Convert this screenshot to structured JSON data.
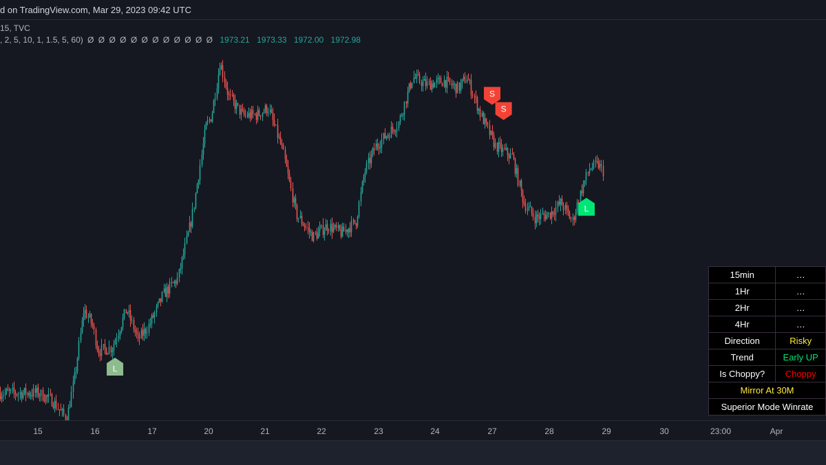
{
  "header": {
    "published_text": "d on TradingView.com, Mar 29, 2023 09:42 UTC"
  },
  "legend": {
    "symbol_line": "15, TVC",
    "params": ", 2, 5, 10, 1, 1.5, 5, 60)",
    "placeholders": [
      "Ø",
      "Ø",
      "Ø",
      "Ø",
      "Ø",
      "Ø",
      "Ø",
      "Ø",
      "Ø",
      "Ø",
      "Ø",
      "Ø"
    ],
    "values": [
      "1973.21",
      "1973.33",
      "1972.00",
      "1972.98"
    ]
  },
  "colors": {
    "background": "#151821",
    "up_candle": "#26a69a",
    "down_candle": "#ef5350",
    "long_signal": "#8fbc8f",
    "long_signal_bright": "#00e676",
    "short_signal": "#f44336",
    "table_text_yellow": "#ffeb3b",
    "table_text_green": "#00e676",
    "table_text_red": "#ff0000"
  },
  "chart_data": {
    "type": "candlestick",
    "x_ticks": [
      "15",
      "16",
      "17",
      "20",
      "21",
      "22",
      "23",
      "24",
      "27",
      "28",
      "29",
      "30",
      "23:00",
      "Apr"
    ],
    "last_close": 1972.98,
    "waypoints": [
      {
        "day": 15.0,
        "price": 1920
      },
      {
        "day": 15.25,
        "price": 1918
      },
      {
        "day": 15.5,
        "price": 1913
      },
      {
        "day": 15.65,
        "price": 1925
      },
      {
        "day": 15.8,
        "price": 1942
      },
      {
        "day": 15.95,
        "price": 1938
      },
      {
        "day": 16.05,
        "price": 1931
      },
      {
        "day": 16.3,
        "price": 1932
      },
      {
        "day": 16.55,
        "price": 1942
      },
      {
        "day": 16.75,
        "price": 1934
      },
      {
        "day": 16.95,
        "price": 1938
      },
      {
        "day": 17.2,
        "price": 1946
      },
      {
        "day": 17.45,
        "price": 1950
      },
      {
        "day": 17.7,
        "price": 1966
      },
      {
        "day": 17.95,
        "price": 1990
      },
      {
        "day": 20.05,
        "price": 1993
      },
      {
        "day": 20.2,
        "price": 2007
      },
      {
        "day": 20.35,
        "price": 1998
      },
      {
        "day": 20.6,
        "price": 1993
      },
      {
        "day": 20.85,
        "price": 1993
      },
      {
        "day": 21.05,
        "price": 1995
      },
      {
        "day": 21.3,
        "price": 1984
      },
      {
        "day": 21.55,
        "price": 1967
      },
      {
        "day": 21.85,
        "price": 1961
      },
      {
        "day": 22.1,
        "price": 1964
      },
      {
        "day": 22.35,
        "price": 1962
      },
      {
        "day": 22.6,
        "price": 1965
      },
      {
        "day": 22.75,
        "price": 1978
      },
      {
        "day": 22.95,
        "price": 1985
      },
      {
        "day": 23.15,
        "price": 1988
      },
      {
        "day": 23.35,
        "price": 1991
      },
      {
        "day": 23.6,
        "price": 2003
      },
      {
        "day": 23.85,
        "price": 2001
      },
      {
        "day": 24.15,
        "price": 2002
      },
      {
        "day": 24.4,
        "price": 2000
      },
      {
        "day": 24.55,
        "price": 2003
      },
      {
        "day": 24.8,
        "price": 1993
      },
      {
        "day": 27.05,
        "price": 1985
      },
      {
        "day": 27.35,
        "price": 1982
      },
      {
        "day": 27.55,
        "price": 1970
      },
      {
        "day": 27.75,
        "price": 1966
      },
      {
        "day": 28.0,
        "price": 1967
      },
      {
        "day": 28.2,
        "price": 1970
      },
      {
        "day": 28.4,
        "price": 1965
      },
      {
        "day": 28.55,
        "price": 1973
      },
      {
        "day": 28.7,
        "price": 1979
      },
      {
        "day": 28.85,
        "price": 1980
      },
      {
        "day": 28.95,
        "price": 1978
      }
    ],
    "signals": [
      {
        "label": "L",
        "type": "long",
        "day": 16.35,
        "price": 1930
      },
      {
        "label": "S",
        "type": "short",
        "day": 26.95,
        "price": 1995
      },
      {
        "label": "S",
        "type": "short",
        "day": 27.2,
        "price": 1991
      },
      {
        "label": "L",
        "type": "long",
        "day": 28.65,
        "price": 1972
      }
    ]
  },
  "info_table": {
    "rows": [
      {
        "label": "15min",
        "value": "…",
        "color": "#ffffff"
      },
      {
        "label": "1Hr",
        "value": "…",
        "color": "#ffffff"
      },
      {
        "label": "2Hr",
        "value": "…",
        "color": "#ffffff"
      },
      {
        "label": "4Hr",
        "value": "…",
        "color": "#ffffff"
      },
      {
        "label": "Direction",
        "value": "Risky",
        "color": "#ffeb3b"
      },
      {
        "label": "Trend",
        "value": "Early UP",
        "color": "#00e676"
      },
      {
        "label": "Is Choppy?",
        "value": "Choppy",
        "color": "#ff0000"
      }
    ],
    "mirror_text": "Mirror At 30M",
    "winrate_text": "Superior Mode Winrate"
  }
}
